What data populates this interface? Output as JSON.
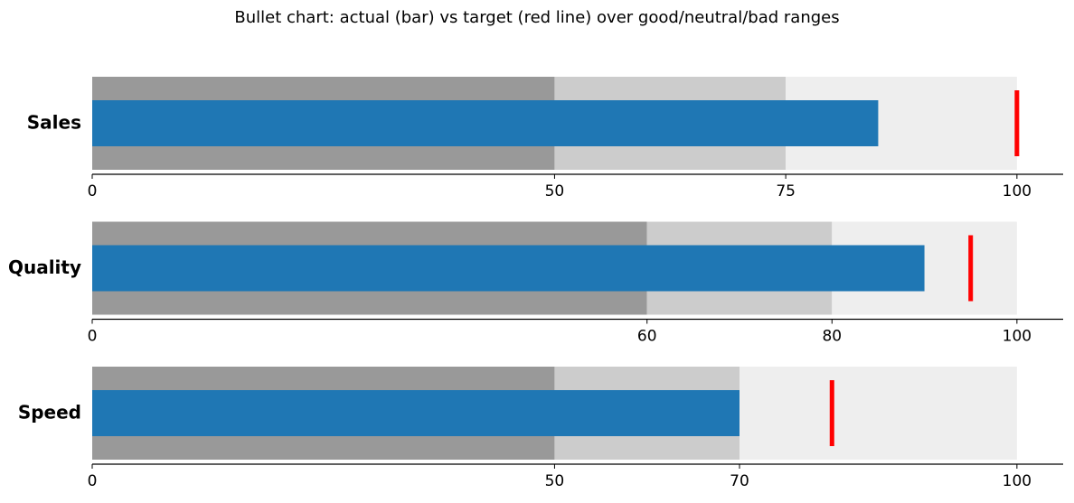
{
  "title": "Bullet chart: actual (bar) vs target (red line) over good/neutral/bad ranges",
  "chart_data": [
    {
      "type": "bullet",
      "label": "Sales",
      "ranges": [
        50,
        75,
        100
      ],
      "range_colors": [
        "#999999",
        "#cccccc",
        "#eeeeee"
      ],
      "value": 85,
      "color": "#1f77b4",
      "target": 100,
      "target_color": "#ff0000",
      "xlim": [
        0,
        105
      ],
      "xticks": [
        0,
        50,
        75,
        100
      ]
    },
    {
      "type": "bullet",
      "label": "Quality",
      "ranges": [
        60,
        80,
        100
      ],
      "range_colors": [
        "#999999",
        "#cccccc",
        "#eeeeee"
      ],
      "value": 90,
      "color": "#1f77b4",
      "target": 95,
      "target_color": "#ff0000",
      "xlim": [
        0,
        105
      ],
      "xticks": [
        0,
        60,
        80,
        100
      ]
    },
    {
      "type": "bullet",
      "label": "Speed",
      "ranges": [
        50,
        70,
        100
      ],
      "range_colors": [
        "#999999",
        "#cccccc",
        "#eeeeee"
      ],
      "value": 70,
      "color": "#1f77b4",
      "target": 80,
      "target_color": "#ff0000",
      "xlim": [
        0,
        105
      ],
      "xticks": [
        0,
        50,
        70,
        100
      ]
    }
  ]
}
